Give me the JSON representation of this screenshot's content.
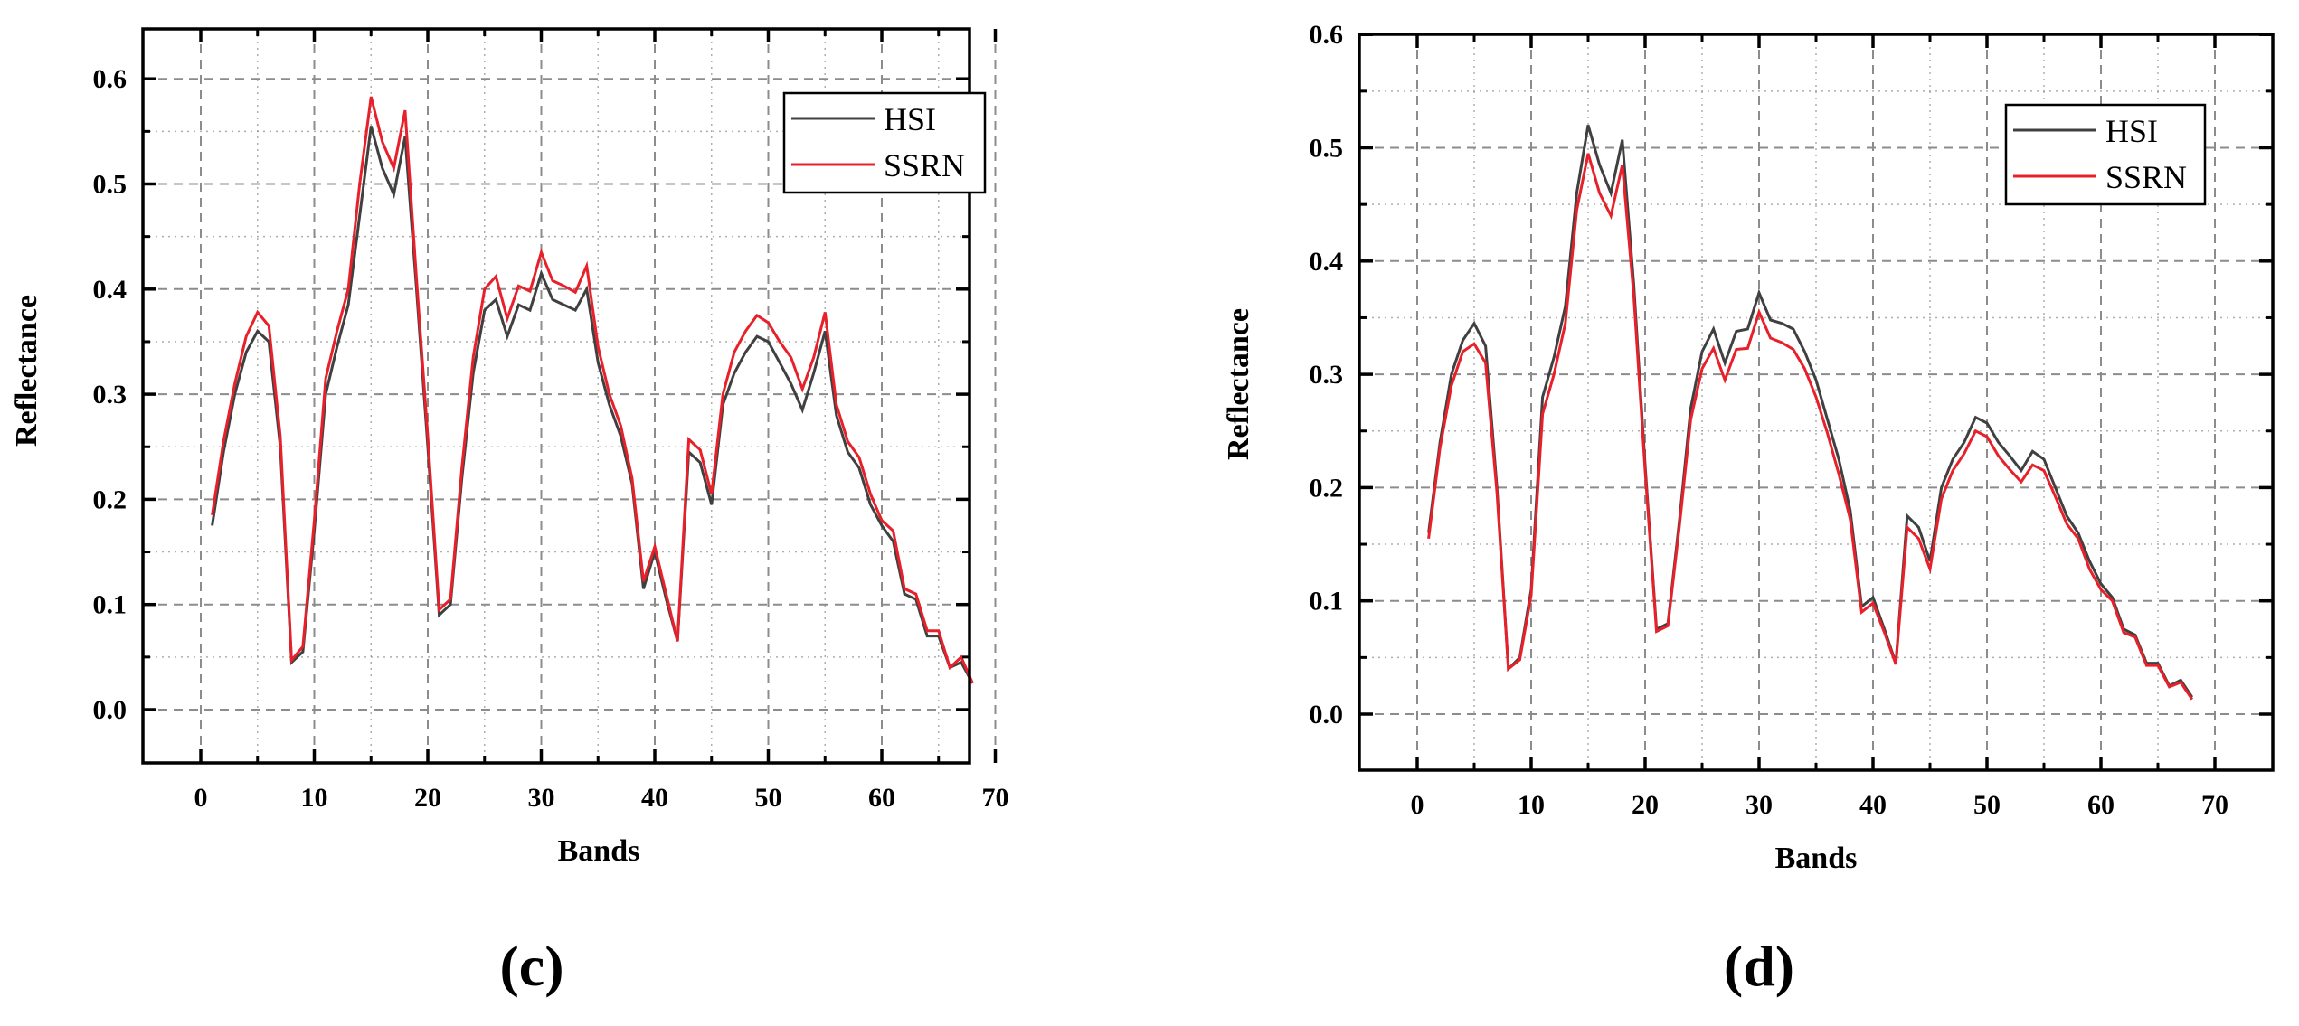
{
  "figure": {
    "panels": [
      {
        "caption": "(c)",
        "xlabel": "Bands",
        "ylabel": "Reflectance"
      },
      {
        "caption": "(d)",
        "xlabel": "Bands",
        "ylabel": "Reflectance"
      }
    ]
  },
  "colors": {
    "hsi": "#404040",
    "ssrn": "#e8202a",
    "grid": "#8c8c8c",
    "axis": "#000000"
  },
  "chart_data": [
    {
      "type": "line",
      "title": "(c)",
      "xlabel": "Bands",
      "ylabel": "Reflectance",
      "xlim": [
        -5,
        75
      ],
      "ylim": [
        -0.05,
        0.65
      ],
      "xticks": [
        0,
        10,
        20,
        30,
        40,
        50,
        60,
        70
      ],
      "yticks": [
        0.0,
        0.1,
        0.2,
        0.3,
        0.4,
        0.5,
        0.6
      ],
      "ytick_labels": [
        "0.0",
        "0.1",
        "0.2",
        "0.3",
        "0.4",
        "0.5",
        "0.6"
      ],
      "grid": true,
      "legend_position": "upper right",
      "x": [
        1,
        2,
        3,
        4,
        5,
        6,
        7,
        8,
        9,
        10,
        11,
        12,
        13,
        14,
        15,
        16,
        17,
        18,
        19,
        20,
        21,
        22,
        23,
        24,
        25,
        26,
        27,
        28,
        29,
        30,
        31,
        32,
        33,
        34,
        35,
        36,
        37,
        38,
        39,
        40,
        41,
        42,
        43,
        44,
        45,
        46,
        47,
        48,
        49,
        50,
        51,
        52,
        53,
        54,
        55,
        56,
        57,
        58,
        59,
        60,
        61,
        62,
        63,
        64,
        65,
        66,
        67,
        68
      ],
      "series": [
        {
          "name": "HSI",
          "color": "#404040",
          "values": [
            0.175,
            0.245,
            0.3,
            0.34,
            0.36,
            0.35,
            0.25,
            0.045,
            0.055,
            0.17,
            0.3,
            0.345,
            0.385,
            0.47,
            0.555,
            0.515,
            0.49,
            0.545,
            0.4,
            0.25,
            0.09,
            0.1,
            0.22,
            0.32,
            0.38,
            0.39,
            0.355,
            0.385,
            0.38,
            0.415,
            0.39,
            0.385,
            0.38,
            0.4,
            0.33,
            0.29,
            0.26,
            0.215,
            0.115,
            0.15,
            0.105,
            0.065,
            0.245,
            0.235,
            0.195,
            0.29,
            0.32,
            0.34,
            0.355,
            0.35,
            0.33,
            0.31,
            0.285,
            0.32,
            0.36,
            0.28,
            0.245,
            0.23,
            0.195,
            0.175,
            0.16,
            0.11,
            0.105,
            0.07,
            0.07,
            0.04,
            0.045,
            0.025
          ]
        },
        {
          "name": "SSRN",
          "color": "#e8202a",
          "values": [
            0.185,
            0.255,
            0.31,
            0.355,
            0.378,
            0.365,
            0.26,
            0.047,
            0.06,
            0.18,
            0.315,
            0.36,
            0.4,
            0.5,
            0.583,
            0.54,
            0.515,
            0.57,
            0.41,
            0.26,
            0.095,
            0.105,
            0.23,
            0.335,
            0.4,
            0.412,
            0.372,
            0.403,
            0.398,
            0.435,
            0.408,
            0.403,
            0.397,
            0.422,
            0.345,
            0.3,
            0.27,
            0.22,
            0.122,
            0.155,
            0.11,
            0.065,
            0.257,
            0.247,
            0.205,
            0.3,
            0.34,
            0.36,
            0.375,
            0.368,
            0.35,
            0.335,
            0.305,
            0.335,
            0.378,
            0.29,
            0.255,
            0.24,
            0.205,
            0.18,
            0.17,
            0.115,
            0.11,
            0.075,
            0.075,
            0.04,
            0.05,
            0.025
          ]
        }
      ]
    },
    {
      "type": "line",
      "title": "(d)",
      "xlabel": "Bands",
      "ylabel": "Reflectance",
      "xlim": [
        -5,
        75
      ],
      "ylim": [
        -0.05,
        0.6
      ],
      "xticks": [
        0,
        10,
        20,
        30,
        40,
        50,
        60,
        70
      ],
      "yticks": [
        0.0,
        0.1,
        0.2,
        0.3,
        0.4,
        0.5,
        0.6
      ],
      "ytick_labels": [
        "0.0",
        "0.1",
        "0.2",
        "0.3",
        "0.4",
        "0.5",
        "0.6"
      ],
      "grid": true,
      "legend_position": "upper right",
      "x": [
        1,
        2,
        3,
        4,
        5,
        6,
        7,
        8,
        9,
        10,
        11,
        12,
        13,
        14,
        15,
        16,
        17,
        18,
        19,
        20,
        21,
        22,
        23,
        24,
        25,
        26,
        27,
        28,
        29,
        30,
        31,
        32,
        33,
        34,
        35,
        36,
        37,
        38,
        39,
        40,
        41,
        42,
        43,
        44,
        45,
        46,
        47,
        48,
        49,
        50,
        51,
        52,
        53,
        54,
        55,
        56,
        57,
        58,
        59,
        60,
        61,
        62,
        63,
        64,
        65,
        66,
        67,
        68
      ],
      "series": [
        {
          "name": "HSI",
          "color": "#404040",
          "values": [
            0.16,
            0.24,
            0.3,
            0.33,
            0.345,
            0.325,
            0.2,
            0.04,
            0.05,
            0.11,
            0.28,
            0.315,
            0.36,
            0.46,
            0.52,
            0.485,
            0.46,
            0.507,
            0.38,
            0.22,
            0.075,
            0.08,
            0.17,
            0.27,
            0.32,
            0.34,
            0.31,
            0.338,
            0.34,
            0.372,
            0.348,
            0.345,
            0.34,
            0.32,
            0.295,
            0.26,
            0.225,
            0.18,
            0.095,
            0.103,
            0.075,
            0.045,
            0.175,
            0.165,
            0.135,
            0.2,
            0.225,
            0.24,
            0.262,
            0.257,
            0.24,
            0.228,
            0.215,
            0.232,
            0.225,
            0.2,
            0.175,
            0.16,
            0.135,
            0.115,
            0.103,
            0.075,
            0.07,
            0.045,
            0.045,
            0.025,
            0.03,
            0.015
          ]
        },
        {
          "name": "SSRN",
          "color": "#e8202a",
          "values": [
            0.155,
            0.235,
            0.29,
            0.32,
            0.327,
            0.31,
            0.195,
            0.04,
            0.048,
            0.105,
            0.265,
            0.3,
            0.345,
            0.445,
            0.495,
            0.46,
            0.44,
            0.485,
            0.37,
            0.215,
            0.073,
            0.078,
            0.165,
            0.26,
            0.305,
            0.323,
            0.295,
            0.322,
            0.323,
            0.355,
            0.332,
            0.328,
            0.322,
            0.305,
            0.28,
            0.248,
            0.212,
            0.172,
            0.09,
            0.098,
            0.072,
            0.044,
            0.165,
            0.155,
            0.128,
            0.19,
            0.215,
            0.23,
            0.25,
            0.245,
            0.228,
            0.216,
            0.205,
            0.22,
            0.215,
            0.192,
            0.168,
            0.155,
            0.128,
            0.11,
            0.1,
            0.072,
            0.068,
            0.043,
            0.043,
            0.024,
            0.028,
            0.013
          ]
        }
      ]
    }
  ]
}
